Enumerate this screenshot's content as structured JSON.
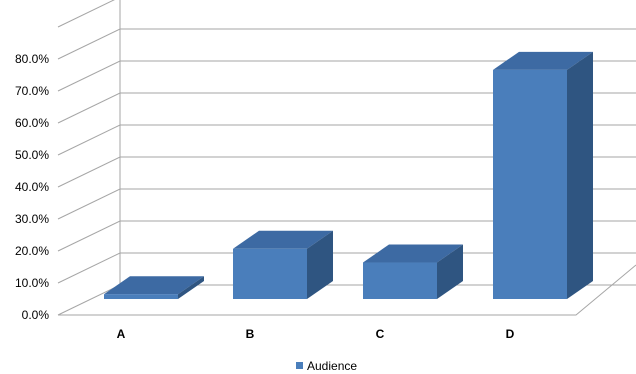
{
  "chart_data": {
    "type": "bar",
    "categories": [
      "A",
      "B",
      "C",
      "D"
    ],
    "series": [
      {
        "name": "Audience",
        "values": [
          1.5,
          15.7,
          11.4,
          71.6
        ]
      }
    ],
    "y_tick_labels": [
      "0.0%",
      "10.0%",
      "20.0%",
      "30.0%",
      "40.0%",
      "50.0%",
      "60.0%",
      "70.0%",
      "80.0%"
    ],
    "ylim": [
      0,
      90
    ],
    "grid": true,
    "legend": "bottom",
    "style": "3d-column",
    "colors": {
      "front": "#4a7ebb",
      "top": "#3d6aa3",
      "side": "#2f5581",
      "grid": "#a6a6a6"
    }
  }
}
